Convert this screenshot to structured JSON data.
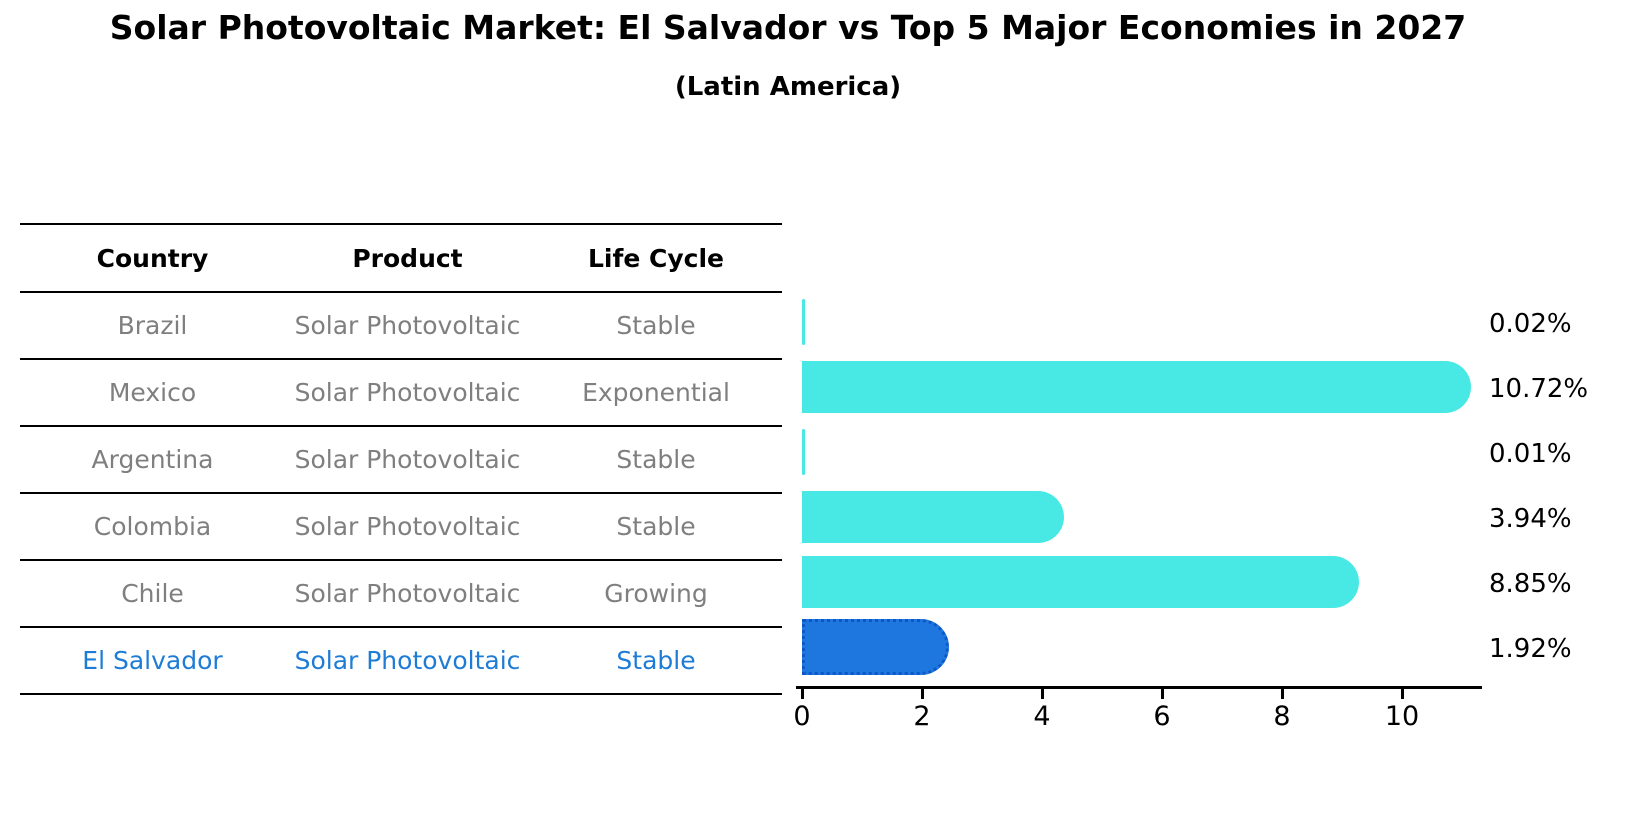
{
  "title": "Solar Photovoltaic Market: El Salvador vs Top 5 Major Economies in 2027",
  "subtitle": "(Latin America)",
  "table": {
    "headers": [
      "Country",
      "Product",
      "Life Cycle"
    ],
    "rows": [
      {
        "country": "Brazil",
        "product": "Solar Photovoltaic",
        "life_cycle": "Stable",
        "highlight": false
      },
      {
        "country": "Mexico",
        "product": "Solar Photovoltaic",
        "life_cycle": "Exponential",
        "highlight": false
      },
      {
        "country": "Argentina",
        "product": "Solar Photovoltaic",
        "life_cycle": "Stable",
        "highlight": false
      },
      {
        "country": "Colombia",
        "product": "Solar Photovoltaic",
        "life_cycle": "Stable",
        "highlight": false
      },
      {
        "country": "Chile",
        "product": "Solar Photovoltaic",
        "life_cycle": "Growing",
        "highlight": false
      },
      {
        "country": "El Salvador",
        "product": "Solar Photovoltaic",
        "life_cycle": "Stable",
        "highlight": true
      }
    ]
  },
  "chart_data": {
    "type": "bar",
    "orientation": "horizontal",
    "title": "Solar Photovoltaic Market: El Salvador vs Top 5 Major Economies in 2027 (Latin America)",
    "categories": [
      "Brazil",
      "Mexico",
      "Argentina",
      "Colombia",
      "Chile",
      "El Salvador"
    ],
    "values": [
      0.02,
      10.72,
      0.01,
      3.94,
      8.85,
      1.92
    ],
    "value_labels": [
      "0.02%",
      "10.72%",
      "0.01%",
      "3.94%",
      "8.85%",
      "1.92%"
    ],
    "x_ticks": [
      "0",
      "2",
      "4",
      "6",
      "8",
      "10"
    ],
    "xlim": [
      0,
      11.3
    ],
    "grid": false,
    "legend": false,
    "highlight_index": 5
  },
  "colors": {
    "bar_default": "#48e8e4",
    "bar_highlight": "#1e76df",
    "bar_highlight_border": "#0e57c6",
    "row_text": "#7f7f7f",
    "highlight_text": "#1e7cd6",
    "header_text": "#000000",
    "axis": "#000000"
  }
}
